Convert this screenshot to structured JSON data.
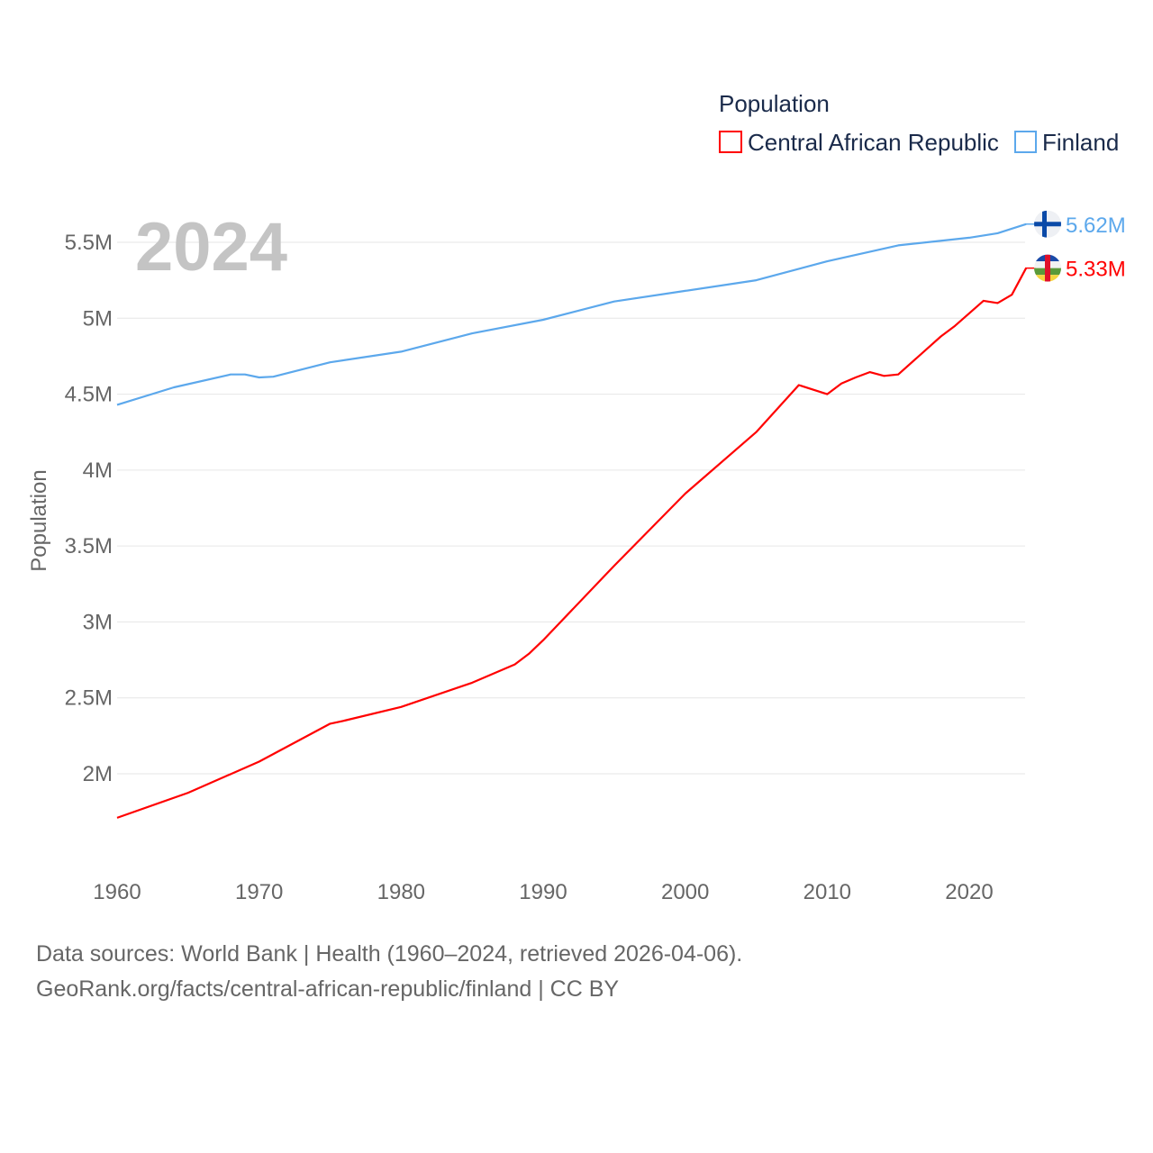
{
  "chart_data": {
    "type": "line",
    "title": "",
    "year_label": "2024",
    "xlabel": "",
    "ylabel": "Population",
    "legend_title": "Population",
    "legend_position": "top-right",
    "grid": true,
    "xlim": [
      1960,
      2024
    ],
    "ylim": [
      1500000,
      5700000
    ],
    "x_ticks": [
      1960,
      1970,
      1980,
      1990,
      2000,
      2010,
      2020
    ],
    "x_tick_labels": [
      "1960",
      "1970",
      "1980",
      "1990",
      "2000",
      "2010",
      "2020"
    ],
    "y_ticks": [
      2000000,
      2500000,
      3000000,
      3500000,
      4000000,
      4500000,
      5000000,
      5500000
    ],
    "y_tick_labels": [
      "2M",
      "2.5M",
      "3M",
      "3.5M",
      "4M",
      "4.5M",
      "5M",
      "5.5M"
    ],
    "series": [
      {
        "name": "Central African Republic",
        "color": "#ff0000",
        "end_label": "5.33M",
        "flag_icon": "central-african-republic-flag-icon",
        "x": [
          1960,
          1965,
          1970,
          1975,
          1976,
          1980,
          1985,
          1988,
          1989,
          1990,
          1995,
          2000,
          2005,
          2008,
          2010,
          2011,
          2012,
          2013,
          2014,
          2015,
          2018,
          2019,
          2021,
          2022,
          2023,
          2024
        ],
        "values": [
          1710000,
          1875000,
          2080000,
          2330000,
          2350000,
          2440000,
          2600000,
          2720000,
          2790000,
          2880000,
          3370000,
          3845000,
          4250000,
          4560000,
          4500000,
          4570000,
          4610000,
          4645000,
          4620000,
          4630000,
          4880000,
          4950000,
          5115000,
          5100000,
          5155000,
          5330000
        ]
      },
      {
        "name": "Finland",
        "color": "#5ca8ec",
        "end_label": "5.62M",
        "flag_icon": "finland-flag-icon",
        "x": [
          1960,
          1964,
          1968,
          1969,
          1970,
          1971,
          1975,
          1980,
          1985,
          1990,
          1995,
          2000,
          2005,
          2010,
          2015,
          2020,
          2022,
          2024
        ],
        "values": [
          4430000,
          4545000,
          4630000,
          4630000,
          4610000,
          4615000,
          4710000,
          4780000,
          4900000,
          4990000,
          5110000,
          5180000,
          5250000,
          5375000,
          5480000,
          5530000,
          5560000,
          5620000
        ]
      }
    ]
  },
  "footer": {
    "line1": "Data sources: World Bank | Health (1960–2024, retrieved 2026-04-06).",
    "line2": "GeoRank.org/facts/central-african-republic/finland | CC BY"
  }
}
